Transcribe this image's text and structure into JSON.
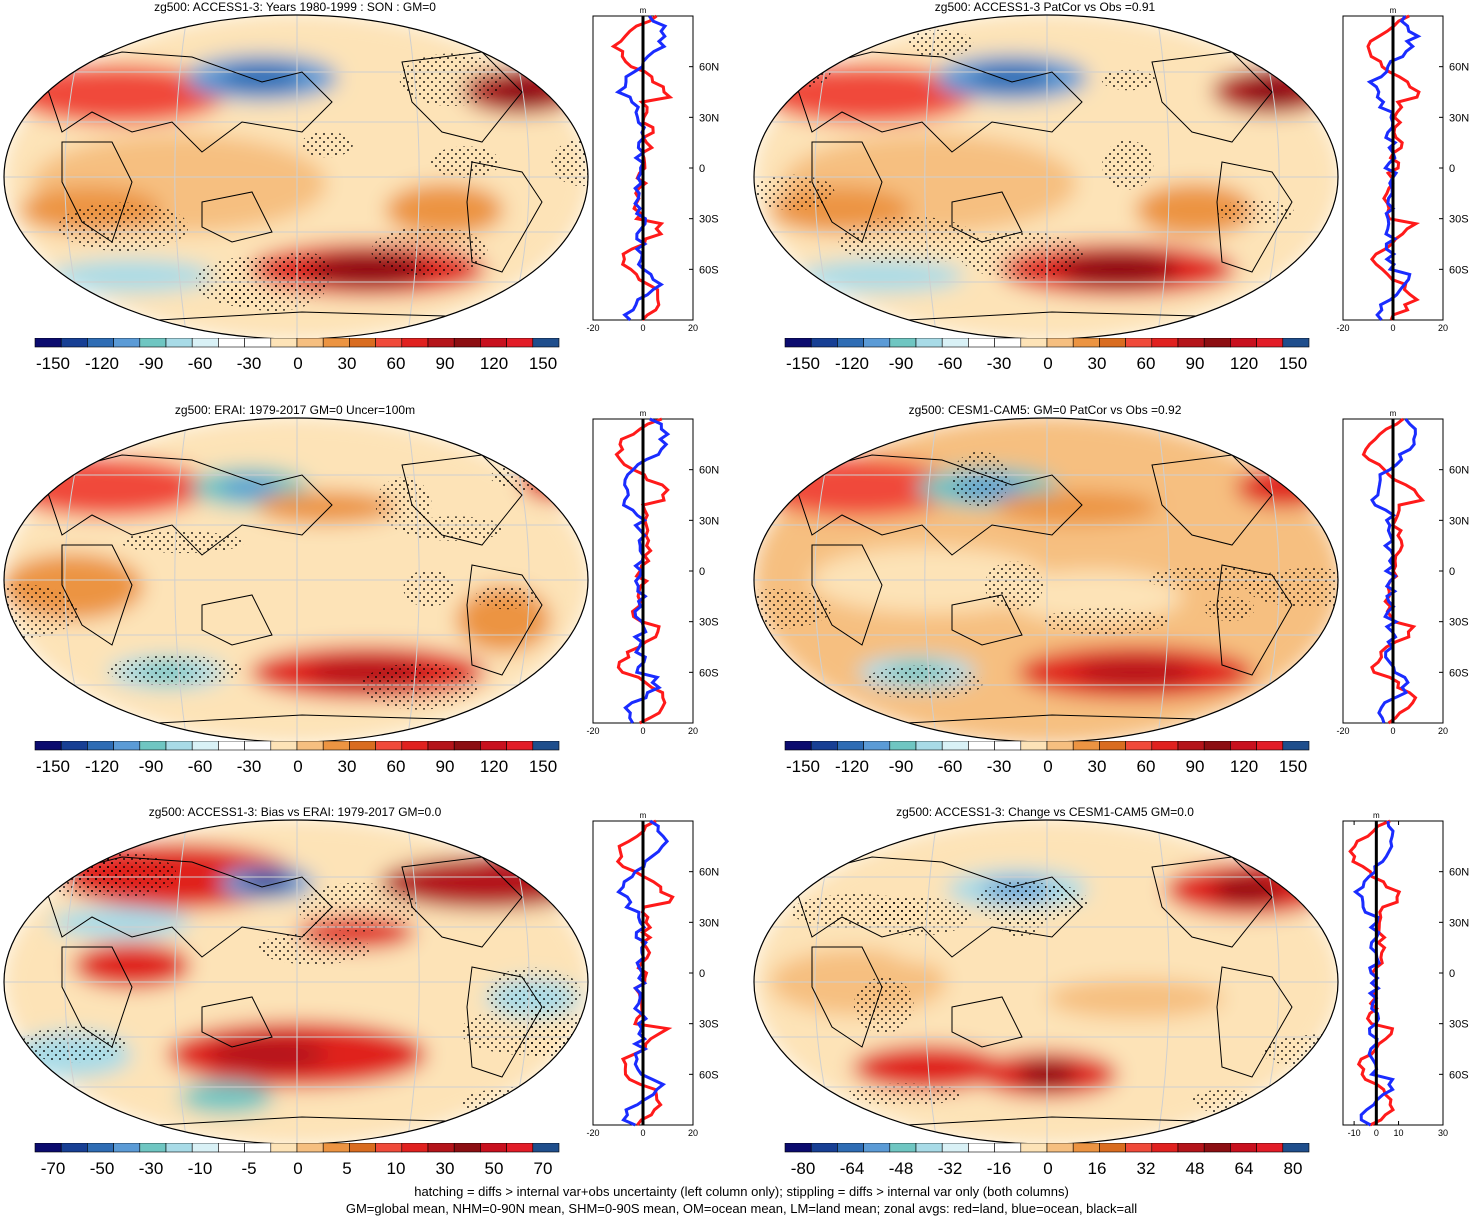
{
  "panels": [
    {
      "id": "p1",
      "title": "zg500: ACCESS1-3: Years 1980-1999 : SON : GM=0",
      "colorbar_labels": [
        "-150",
        "-120",
        "-90",
        "-60",
        "-30",
        "0",
        "30",
        "60",
        "90",
        "120",
        "150"
      ],
      "zonal": {
        "xticks": [
          "-20",
          "0",
          "20"
        ],
        "unit": "m",
        "lat_labels": [
          "60N",
          "30N",
          "0",
          "30S",
          "60S"
        ]
      }
    },
    {
      "id": "p2",
      "title": "zg500: ACCESS1-3 PatCor vs Obs =0.91",
      "colorbar_labels": [
        "-150",
        "-120",
        "-90",
        "-60",
        "-30",
        "0",
        "30",
        "60",
        "90",
        "120",
        "150"
      ],
      "zonal": {
        "xticks": [
          "-20",
          "0",
          "20"
        ],
        "unit": "m",
        "lat_labels": [
          "60N",
          "30N",
          "0",
          "30S",
          "60S"
        ]
      }
    },
    {
      "id": "p3",
      "title": "zg500: ERAI: 1979-2017 GM=0 Uncer=100m",
      "colorbar_labels": [
        "-150",
        "-120",
        "-90",
        "-60",
        "-30",
        "0",
        "30",
        "60",
        "90",
        "120",
        "150"
      ],
      "zonal": {
        "xticks": [
          "-20",
          "0",
          "20"
        ],
        "unit": "m",
        "lat_labels": [
          "60N",
          "30N",
          "0",
          "30S",
          "60S"
        ]
      }
    },
    {
      "id": "p4",
      "title": "zg500: CESM1-CAM5: GM=0 PatCor vs Obs =0.92",
      "colorbar_labels": [
        "-150",
        "-120",
        "-90",
        "-60",
        "-30",
        "0",
        "30",
        "60",
        "90",
        "120",
        "150"
      ],
      "zonal": {
        "xticks": [
          "-20",
          "0",
          "20"
        ],
        "unit": "m",
        "lat_labels": [
          "60N",
          "30N",
          "0",
          "30S",
          "60S"
        ]
      }
    },
    {
      "id": "p5",
      "title": "zg500: ACCESS1-3: Bias vs ERAI: 1979-2017  GM=0.0",
      "colorbar_labels": [
        "-70",
        "-50",
        "-30",
        "-10",
        "-5",
        "0",
        "5",
        "10",
        "30",
        "50",
        "70"
      ],
      "zonal": {
        "xticks": [
          "-20",
          "0",
          "20"
        ],
        "unit": "m",
        "lat_labels": [
          "60N",
          "30N",
          "0",
          "30S",
          "60S"
        ]
      }
    },
    {
      "id": "p6",
      "title": "zg500: ACCESS1-3: Change vs CESM1-CAM5 GM=0.0",
      "colorbar_labels": [
        "-80",
        "-64",
        "-48",
        "-32",
        "-16",
        "0",
        "16",
        "32",
        "48",
        "64",
        "80"
      ],
      "zonal": {
        "xticks": [
          "-10",
          "0",
          "10",
          "30"
        ],
        "unit": "m",
        "lat_labels": [
          "60N",
          "30N",
          "0",
          "30S",
          "60S"
        ]
      }
    }
  ],
  "colormap": [
    "#0b0b6e",
    "#173f94",
    "#2e6cb4",
    "#5b9bd6",
    "#6fc6c2",
    "#a8dbe7",
    "#d9f1f6",
    "#ffffff",
    "#ffffff",
    "#fde3b7",
    "#f6bf80",
    "#ec9442",
    "#d96c20",
    "#f04a3a",
    "#e0211f",
    "#b4141a",
    "#8c0e12",
    "#c8101e",
    "#e21c27",
    "#1f4e8c"
  ],
  "chart_data": [
    {
      "type": "heatmap",
      "title": "zg500: ACCESS1-3: Years 1980-1999 : SON : GM=0",
      "colorbar_range": [
        -150,
        150
      ],
      "zonal_mean": {
        "xlim": [
          -20,
          20
        ],
        "xlabel": "m",
        "lat_range": [
          -90,
          90
        ]
      }
    },
    {
      "type": "heatmap",
      "title": "zg500: ACCESS1-3 PatCor vs Obs =0.91",
      "colorbar_range": [
        -150,
        150
      ],
      "zonal_mean": {
        "xlim": [
          -20,
          20
        ],
        "xlabel": "m",
        "lat_range": [
          -90,
          90
        ]
      }
    },
    {
      "type": "heatmap",
      "title": "zg500: ERAI: 1979-2017 GM=0 Uncer=100m",
      "colorbar_range": [
        -150,
        150
      ],
      "zonal_mean": {
        "xlim": [
          -20,
          20
        ],
        "xlabel": "m",
        "lat_range": [
          -90,
          90
        ]
      }
    },
    {
      "type": "heatmap",
      "title": "zg500: CESM1-CAM5: GM=0 PatCor vs Obs =0.92",
      "colorbar_range": [
        -150,
        150
      ],
      "zonal_mean": {
        "xlim": [
          -20,
          20
        ],
        "xlabel": "m",
        "lat_range": [
          -90,
          90
        ]
      }
    },
    {
      "type": "heatmap",
      "title": "zg500: ACCESS1-3: Bias vs ERAI: 1979-2017  GM=0.0",
      "colorbar_range": [
        -70,
        70
      ],
      "zonal_mean": {
        "xlim": [
          -20,
          20
        ],
        "xlabel": "m",
        "lat_range": [
          -90,
          90
        ]
      }
    },
    {
      "type": "heatmap",
      "title": "zg500: ACCESS1-3: Change vs CESM1-CAM5 GM=0.0",
      "colorbar_range": [
        -80,
        80
      ],
      "zonal_mean": {
        "xlim": [
          -15,
          30
        ],
        "xlabel": "m",
        "lat_range": [
          -90,
          90
        ]
      }
    }
  ],
  "footnote": {
    "line1": "hatching = diffs > internal var+obs uncertainty (left column only); stippling = diffs > internal var only (both columns)",
    "line2": "GM=global mean, NHM=0-90N mean, SHM=0-90S mean, OM=ocean mean, LM=land mean; zonal avgs: red=land, blue=ocean, black=all"
  }
}
